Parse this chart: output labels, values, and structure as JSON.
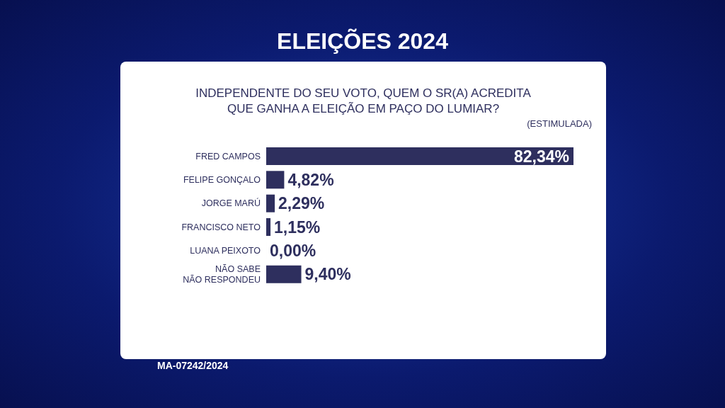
{
  "chart_data": {
    "type": "bar",
    "orientation": "horizontal",
    "title": "INDEPENDENTE DO SEU VOTO, QUEM O SR(A) ACREDITA\nQUE GANHA A ELEIÇÃO EM PAÇO DO LUMIAR?",
    "subtitle": "(ESTIMULADA)",
    "annotations": [
      "ELEIÇÕES 2024",
      "MA-07242/2024"
    ],
    "categories": [
      "FRED CAMPOS",
      "FELIPE GONÇALO",
      "JORGE MARÚ",
      "FRANCISCO NETO",
      "LUANA PEIXOTO",
      "NÃO SABE\nNÃO RESPONDEU"
    ],
    "values": [
      82.34,
      4.82,
      2.29,
      1.15,
      0.0,
      9.4
    ],
    "value_labels": [
      "82,34%",
      "4,82%",
      "2,29%",
      "1,15%",
      "0,00%",
      "9,40%"
    ],
    "color": "#2e2f5e",
    "legend": false,
    "grid": false
  }
}
